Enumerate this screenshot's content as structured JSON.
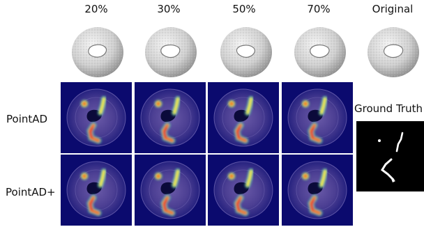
{
  "columns": [
    {
      "label": "20%"
    },
    {
      "label": "30%"
    },
    {
      "label": "50%"
    },
    {
      "label": "70%"
    },
    {
      "label": "Original"
    }
  ],
  "rows": [
    {
      "label": "PointAD"
    },
    {
      "label": "PointAD+"
    }
  ],
  "ground_truth": {
    "label": "Ground Truth"
  },
  "colors": {
    "heat_background": "#0b0a6e",
    "mesh_gray": "#d9d9d9",
    "anomaly_red": "#e8262a",
    "anomaly_yellow": "#f5e83a"
  }
}
